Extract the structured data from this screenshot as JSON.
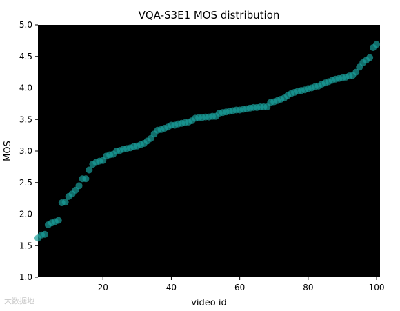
{
  "chart_data": {
    "type": "scatter",
    "title": "VQA-S3E1 MOS distribution",
    "xlabel": "video id",
    "ylabel": "MOS",
    "xlim": [
      1,
      101
    ],
    "ylim": [
      1.0,
      5.0
    ],
    "xticks": [
      20,
      40,
      60,
      80,
      100
    ],
    "yticks": [
      1.0,
      1.5,
      2.0,
      2.5,
      3.0,
      3.5,
      4.0,
      4.5,
      5.0
    ],
    "background": "#000000",
    "marker_color": "#1a9e9a",
    "grid": false,
    "x": [
      1,
      2,
      3,
      4,
      5,
      6,
      7,
      8,
      9,
      10,
      11,
      12,
      13,
      14,
      15,
      16,
      17,
      18,
      19,
      20,
      21,
      22,
      23,
      24,
      25,
      26,
      27,
      28,
      29,
      30,
      31,
      32,
      33,
      34,
      35,
      36,
      37,
      38,
      39,
      40,
      41,
      42,
      43,
      44,
      45,
      46,
      47,
      48,
      49,
      50,
      51,
      52,
      53,
      54,
      55,
      56,
      57,
      58,
      59,
      60,
      61,
      62,
      63,
      64,
      65,
      66,
      67,
      68,
      69,
      70,
      71,
      72,
      73,
      74,
      75,
      76,
      77,
      78,
      79,
      80,
      81,
      82,
      83,
      84,
      85,
      86,
      87,
      88,
      89,
      90,
      91,
      92,
      93,
      94,
      95,
      96,
      97,
      98,
      99,
      100
    ],
    "values": [
      1.62,
      1.67,
      1.68,
      1.83,
      1.86,
      1.88,
      1.9,
      2.18,
      2.19,
      2.28,
      2.32,
      2.38,
      2.45,
      2.56,
      2.56,
      2.7,
      2.79,
      2.82,
      2.84,
      2.85,
      2.92,
      2.94,
      2.95,
      3.0,
      3.01,
      3.03,
      3.04,
      3.05,
      3.07,
      3.08,
      3.1,
      3.12,
      3.16,
      3.2,
      3.27,
      3.33,
      3.34,
      3.36,
      3.38,
      3.41,
      3.41,
      3.43,
      3.44,
      3.45,
      3.46,
      3.48,
      3.52,
      3.53,
      3.53,
      3.54,
      3.54,
      3.55,
      3.55,
      3.6,
      3.61,
      3.62,
      3.63,
      3.64,
      3.65,
      3.65,
      3.66,
      3.67,
      3.68,
      3.69,
      3.69,
      3.7,
      3.7,
      3.7,
      3.77,
      3.78,
      3.8,
      3.82,
      3.84,
      3.88,
      3.91,
      3.93,
      3.95,
      3.96,
      3.97,
      3.99,
      4.0,
      4.02,
      4.03,
      4.06,
      4.08,
      4.1,
      4.12,
      4.14,
      4.15,
      4.16,
      4.17,
      4.19,
      4.2,
      4.25,
      4.33,
      4.4,
      4.44,
      4.48,
      4.64,
      4.69
    ]
  },
  "watermark": "大数据地"
}
